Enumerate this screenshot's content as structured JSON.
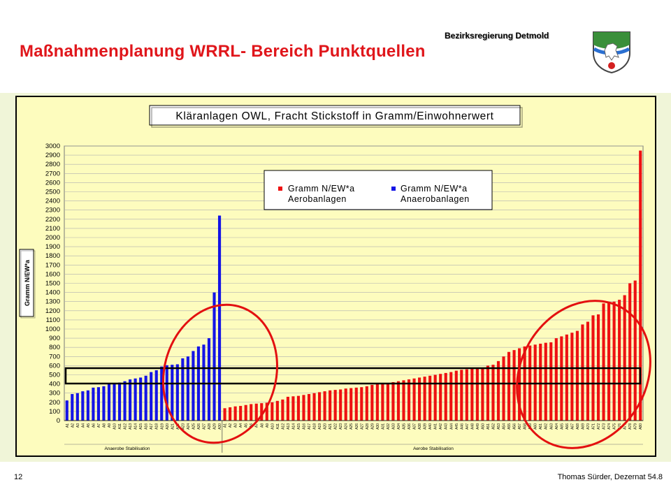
{
  "slide": {
    "title": "Maßnahmenplanung WRRL- Bereich Punktquellen",
    "org": "Bezirksregierung Detmold",
    "number": "12",
    "footer": "Thomas Sürder, Dezernat 54.8"
  },
  "colors": {
    "aerob": "#ee1111",
    "anaerob": "#1414e6",
    "title_red": "#e0161b",
    "plot_bg": "#fdfcbe"
  },
  "icons": {
    "crest": "nrw-crest-icon"
  },
  "chart_data": {
    "type": "bar",
    "title": "Kläranlagen OWL, Fracht Stickstoff in Gramm/Einwohnerwert",
    "ylabel": "Gramm N/EW*a",
    "ylim": [
      0,
      3000
    ],
    "ytick_step": 100,
    "grid": true,
    "legend_position": "top-center",
    "series": [
      {
        "name": "Gramm N/EW*a\nAnaerobanlagen",
        "color": "#1414e6",
        "group_label": "Anaerobe Stabilisation",
        "values": [
          220,
          290,
          300,
          320,
          330,
          360,
          365,
          375,
          400,
          410,
          415,
          430,
          450,
          460,
          470,
          490,
          530,
          550,
          590,
          605,
          610,
          615,
          680,
          700,
          760,
          810,
          830,
          900,
          1400,
          2240
        ]
      },
      {
        "name": "Gramm N/EW*a\nAerobanlagen",
        "color": "#ee1111",
        "group_label": "Aerobe Stabilisation",
        "values": [
          135,
          145,
          155,
          160,
          170,
          180,
          185,
          190,
          195,
          200,
          215,
          230,
          260,
          265,
          270,
          280,
          290,
          300,
          310,
          320,
          330,
          335,
          340,
          350,
          355,
          360,
          365,
          375,
          390,
          400,
          405,
          410,
          420,
          430,
          440,
          450,
          460,
          470,
          480,
          490,
          500,
          510,
          520,
          530,
          545,
          555,
          560,
          565,
          570,
          580,
          600,
          610,
          650,
          700,
          750,
          770,
          790,
          810,
          820,
          830,
          840,
          850,
          855,
          900,
          920,
          940,
          960,
          980,
          1050,
          1080,
          1150,
          1160,
          1280,
          1290,
          1300,
          1320,
          1370,
          1500,
          1530,
          2950
        ]
      }
    ]
  }
}
